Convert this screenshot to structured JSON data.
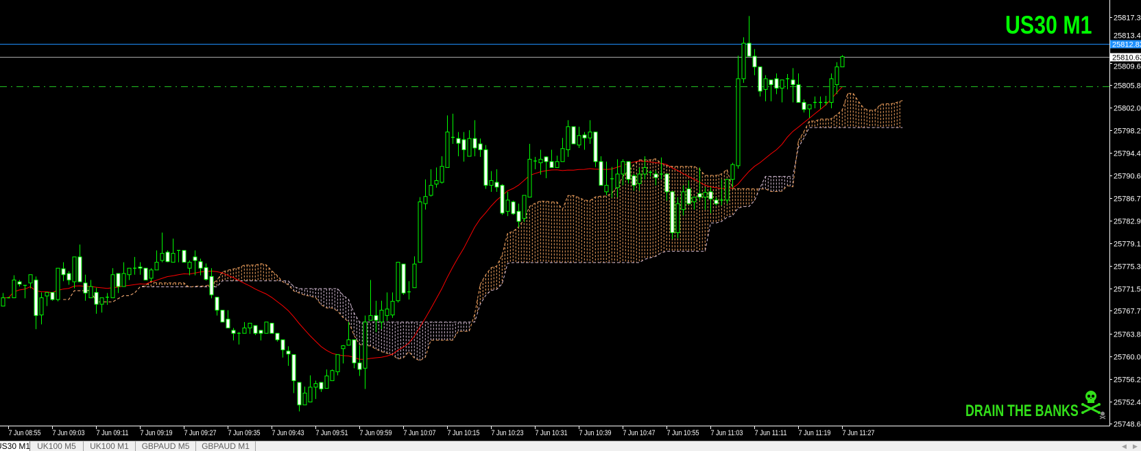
{
  "header": {
    "symbol_title": "US30 M1"
  },
  "watermark": {
    "text": "DRAIN THE BANKS",
    "icon": "skull-crossbones-icon"
  },
  "tabs": [
    {
      "label": "US30 M1",
      "active": true
    },
    {
      "label": "UK100 M5",
      "active": false
    },
    {
      "label": "UK100 M1",
      "active": false
    },
    {
      "label": "GBPAUD M5",
      "active": false
    },
    {
      "label": "GBPAUD M1",
      "active": false
    }
  ],
  "tab_scroll": {
    "left": "◀",
    "right": "▶"
  },
  "colors": {
    "background": "#000000",
    "candle_outline": "#00ff00",
    "bear_body": "#ffffff",
    "bull_body": "#000000",
    "moving_average": "#ff0000",
    "cloud_span_a": "#f4a460",
    "cloud_span_b": "#d8bfd8",
    "axis": "#ffffff",
    "title": "#00ff00"
  },
  "chart_data": {
    "type": "candlestick",
    "title": "US30 M1",
    "ylim": [
      25748.3,
      25820.2
    ],
    "grid": false,
    "first_bar_time": "7 Jun 08:54",
    "x_tick_labels": [
      "7 Jun 08:55",
      "7 Jun 09:03",
      "7 Jun 09:11",
      "7 Jun 09:19",
      "7 Jun 09:27",
      "7 Jun 09:35",
      "7 Jun 09:43",
      "7 Jun 09:51",
      "7 Jun 09:59",
      "7 Jun 10:07",
      "7 Jun 10:15",
      "7 Jun 10:23",
      "7 Jun 10:31",
      "7 Jun 10:39",
      "7 Jun 10:47",
      "7 Jun 10:55",
      "7 Jun 11:03",
      "7 Jun 11:11",
      "7 Jun 11:19",
      "7 Jun 11:27"
    ],
    "y_tick_labels": [
      "25817.30",
      "25813.40",
      "25809.60",
      "25805.80",
      "25802.00",
      "25798.20",
      "25794.40",
      "25790.60",
      "25786.70",
      "25782.90",
      "25779.10",
      "25775.30",
      "25771.50",
      "25767.70",
      "25763.80",
      "25760.00",
      "25756.20",
      "25752.40",
      "25748.60"
    ],
    "horizontal_lines": [
      {
        "price": 25812.83,
        "label": "25812.83",
        "color": "#1e90ff",
        "style": "solid",
        "label_bg": "#1e90ff",
        "label_color": "#ffffff"
      },
      {
        "price": 25810.63,
        "label": "25810.63",
        "color": "#a9a9a9",
        "style": "solid",
        "label_bg": "#ffffff",
        "label_color": "#000000"
      },
      {
        "price": 25805.6,
        "color": "#22c322",
        "style": "dash-dot"
      }
    ],
    "ohlc_columns": [
      "open",
      "high",
      "low",
      "close"
    ],
    "ohlc": [
      [
        25768.5,
        25770.7,
        25768.5,
        25769.9
      ],
      [
        25769.9,
        25770.0,
        25769.8,
        25769.9
      ],
      [
        25769.9,
        25773.7,
        25769.9,
        25772.9
      ],
      [
        25772.6,
        25772.9,
        25771.8,
        25772.2
      ],
      [
        25772.0,
        25772.0,
        25769.8,
        25771.9
      ],
      [
        25772.4,
        25773.8,
        25771.5,
        25773.8
      ],
      [
        25772.9,
        25773.5,
        25764.6,
        25766.9
      ],
      [
        25767.0,
        25770.8,
        25765.4,
        25769.9
      ],
      [
        25770.2,
        25770.8,
        25768.5,
        25770.8
      ],
      [
        25770.8,
        25770.8,
        25769.4,
        25769.6
      ],
      [
        25769.6,
        25774.9,
        25769.3,
        25774.9
      ],
      [
        25774.8,
        25775.9,
        25772.7,
        25773.8
      ],
      [
        25774.0,
        25774.4,
        25772.1,
        25772.9
      ],
      [
        25772.6,
        25776.8,
        25771.5,
        25776.8
      ],
      [
        25776.8,
        25778.9,
        25772.6,
        25772.6
      ],
      [
        25772.4,
        25773.8,
        25769.4,
        25770.7
      ],
      [
        25769.9,
        25772.9,
        25769.9,
        25771.8
      ],
      [
        25770.8,
        25771.6,
        25767.2,
        25768.8
      ],
      [
        25768.8,
        25769.9,
        25767.4,
        25769.9
      ],
      [
        25770.0,
        25770.7,
        25768.7,
        25769.9
      ],
      [
        25769.9,
        25774.9,
        25769.9,
        25773.8
      ],
      [
        25774.0,
        25774.0,
        25770.7,
        25771.8
      ],
      [
        25771.8,
        25775.9,
        25771.8,
        25774.0
      ],
      [
        25773.8,
        25774.9,
        25772.9,
        25774.9
      ],
      [
        25774.9,
        25776.8,
        25773.8,
        25774.9
      ],
      [
        25775.1,
        25775.9,
        25773.8,
        25774.9
      ],
      [
        25774.9,
        25774.9,
        25772.9,
        25772.9
      ],
      [
        25773.2,
        25774.9,
        25772.7,
        25774.6
      ],
      [
        25774.6,
        25777.9,
        25774.6,
        25775.9
      ],
      [
        25776.2,
        25780.9,
        25775.9,
        25777.4
      ],
      [
        25777.6,
        25777.9,
        25775.9,
        25776.0
      ],
      [
        25775.9,
        25779.9,
        25775.9,
        25777.4
      ],
      [
        25777.9,
        25777.9,
        25775.9,
        25777.9
      ],
      [
        25777.9,
        25777.9,
        25775.9,
        25775.9
      ],
      [
        25774.9,
        25776.2,
        25773.7,
        25775.9
      ],
      [
        25776.8,
        25777.9,
        25773.7,
        25776.2
      ],
      [
        25776.0,
        25776.5,
        25773.7,
        25774.9
      ],
      [
        25775.0,
        25775.7,
        25772.8,
        25773.0
      ],
      [
        25773.5,
        25774.9,
        25769.8,
        25770.4
      ],
      [
        25770.0,
        25770.0,
        25766.9,
        25767.8
      ],
      [
        25767.8,
        25767.8,
        25765.8,
        25765.8
      ],
      [
        25766.3,
        25767.8,
        25764.8,
        25764.8
      ],
      [
        25764.4,
        25764.8,
        25762.7,
        25763.9
      ],
      [
        25763.9,
        25764.1,
        25762.0,
        25763.9
      ],
      [
        25763.9,
        25765.8,
        25763.9,
        25764.8
      ],
      [
        25764.8,
        25765.6,
        25763.8,
        25765.6
      ],
      [
        25765.2,
        25765.2,
        25763.6,
        25763.9
      ],
      [
        25764.4,
        25764.4,
        25762.7,
        25763.9
      ],
      [
        25763.9,
        25765.8,
        25763.9,
        25765.8
      ],
      [
        25765.6,
        25765.6,
        25763.9,
        25763.9
      ],
      [
        25763.9,
        25763.9,
        25762.5,
        25762.8
      ],
      [
        25762.8,
        25762.8,
        25759.8,
        25761.1
      ],
      [
        25760.9,
        25761.7,
        25758.4,
        25760.4
      ],
      [
        25760.3,
        25760.3,
        25753.8,
        25755.9
      ],
      [
        25755.6,
        25755.6,
        25750.7,
        25751.8
      ],
      [
        25751.8,
        25754.9,
        25751.8,
        25753.8
      ],
      [
        25752.3,
        25756.8,
        25752.3,
        25754.8
      ],
      [
        25754.8,
        25755.9,
        25752.8,
        25755.4
      ],
      [
        25755.6,
        25755.6,
        25754.0,
        25754.5
      ],
      [
        25754.6,
        25757.8,
        25754.6,
        25756.7
      ],
      [
        25755.9,
        25757.8,
        25755.9,
        25757.6
      ],
      [
        25757.4,
        25760.3,
        25756.8,
        25760.3
      ],
      [
        25761.3,
        25761.9,
        25758.8,
        25761.8
      ],
      [
        25761.9,
        25765.8,
        25761.9,
        25762.8
      ],
      [
        25762.8,
        25762.8,
        25758.0,
        25758.9
      ],
      [
        25758.9,
        25761.9,
        25756.7,
        25757.8
      ],
      [
        25758.0,
        25766.9,
        25754.5,
        25765.8
      ],
      [
        25766.1,
        25772.9,
        25766.1,
        25766.9
      ],
      [
        25766.9,
        25769.4,
        25764.1,
        25766.1
      ],
      [
        25765.8,
        25769.4,
        25764.6,
        25767.8
      ],
      [
        25766.9,
        25770.8,
        25766.0,
        25768.0
      ],
      [
        25767.0,
        25770.8,
        25766.5,
        25769.3
      ],
      [
        25769.4,
        25775.9,
        25769.1,
        25775.9
      ],
      [
        25775.6,
        25775.6,
        25770.4,
        25770.7
      ],
      [
        25770.9,
        25772.7,
        25769.6,
        25770.8
      ],
      [
        25771.6,
        25776.9,
        25771.6,
        25775.6
      ],
      [
        25775.9,
        25786.9,
        25775.9,
        25786.1
      ],
      [
        25785.8,
        25789.9,
        25784.8,
        25787.0
      ],
      [
        25787.2,
        25791.6,
        25787.0,
        25788.9
      ],
      [
        25789.1,
        25791.9,
        25788.5,
        25789.7
      ],
      [
        25789.4,
        25793.8,
        25789.2,
        25792.1
      ],
      [
        25791.9,
        25800.7,
        25791.9,
        25797.9
      ],
      [
        25797.0,
        25801.0,
        25795.9,
        25797.0
      ],
      [
        25796.8,
        25797.9,
        25793.8,
        25796.0
      ],
      [
        25796.6,
        25797.9,
        25792.9,
        25794.9
      ],
      [
        25793.8,
        25798.2,
        25793.8,
        25796.8
      ],
      [
        25796.8,
        25799.9,
        25793.8,
        25795.2
      ],
      [
        25795.9,
        25796.8,
        25793.7,
        25794.9
      ],
      [
        25794.9,
        25795.7,
        25788.3,
        25788.9
      ],
      [
        25788.9,
        25791.3,
        25787.8,
        25789.7
      ],
      [
        25789.4,
        25791.6,
        25787.8,
        25788.6
      ],
      [
        25788.9,
        25789.1,
        25783.9,
        25784.2
      ],
      [
        25784.5,
        25787.8,
        25783.7,
        25786.4
      ],
      [
        25786.1,
        25786.3,
        25783.9,
        25784.1
      ],
      [
        25784.5,
        25785.8,
        25781.8,
        25782.8
      ],
      [
        25783.3,
        25787.2,
        25782.7,
        25787.2
      ],
      [
        25786.9,
        25795.9,
        25786.9,
        25793.3
      ],
      [
        25793.0,
        25793.7,
        25791.6,
        25793.0
      ],
      [
        25792.7,
        25794.9,
        25790.7,
        25793.3
      ],
      [
        25793.7,
        25793.8,
        25790.1,
        25792.9
      ],
      [
        25792.9,
        25794.9,
        25791.9,
        25791.9
      ],
      [
        25791.9,
        25793.9,
        25791.9,
        25792.9
      ],
      [
        25792.9,
        25796.9,
        25792.9,
        25795.1
      ],
      [
        25794.9,
        25799.9,
        25793.7,
        25798.8
      ],
      [
        25798.8,
        25798.8,
        25795.9,
        25795.9
      ],
      [
        25795.7,
        25798.8,
        25795.2,
        25797.3
      ],
      [
        25797.4,
        25797.9,
        25794.9,
        25796.9
      ],
      [
        25796.9,
        25799.9,
        25795.9,
        25797.9
      ],
      [
        25797.9,
        25797.9,
        25792.0,
        25792.9
      ],
      [
        25792.9,
        25793.8,
        25788.9,
        25788.9
      ],
      [
        25787.8,
        25792.9,
        25787.2,
        25788.9
      ],
      [
        25790.0,
        25792.0,
        25786.8,
        25790.0
      ],
      [
        25788.5,
        25793.3,
        25786.9,
        25790.8
      ],
      [
        25790.8,
        25793.3,
        25788.9,
        25792.9
      ],
      [
        25792.9,
        25792.9,
        25789.2,
        25789.9
      ],
      [
        25790.5,
        25790.8,
        25788.0,
        25788.9
      ],
      [
        25789.2,
        25791.9,
        25788.0,
        25790.8
      ],
      [
        25790.8,
        25793.8,
        25789.9,
        25791.9
      ],
      [
        25791.1,
        25791.4,
        25790.4,
        25791.1
      ],
      [
        25790.8,
        25791.4,
        25788.9,
        25790.2
      ],
      [
        25790.8,
        25793.6,
        25789.9,
        25790.8
      ],
      [
        25790.8,
        25790.8,
        25786.3,
        25787.8
      ],
      [
        25787.8,
        25787.8,
        25779.8,
        25780.9
      ],
      [
        25780.9,
        25786.9,
        25780.0,
        25785.8
      ],
      [
        25784.8,
        25788.9,
        25783.8,
        25787.8
      ],
      [
        25788.3,
        25789.7,
        25785.6,
        25785.8
      ],
      [
        25786.1,
        25787.0,
        25784.8,
        25786.9
      ],
      [
        25787.5,
        25791.9,
        25786.3,
        25786.9
      ],
      [
        25786.9,
        25788.5,
        25784.8,
        25787.7
      ],
      [
        25787.8,
        25788.6,
        25784.2,
        25786.6
      ],
      [
        25786.4,
        25786.9,
        25785.5,
        25785.8
      ],
      [
        25786.4,
        25789.9,
        25785.5,
        25786.4
      ],
      [
        25786.4,
        25789.9,
        25785.8,
        25789.9
      ],
      [
        25789.9,
        25792.7,
        25788.5,
        25792.4
      ],
      [
        25792.2,
        25810.8,
        25791.7,
        25806.9
      ],
      [
        25806.9,
        25813.9,
        25806.2,
        25812.9
      ],
      [
        25812.9,
        25817.5,
        25810.7,
        25810.7
      ],
      [
        25810.7,
        25811.9,
        25807.5,
        25808.9
      ],
      [
        25808.9,
        25808.9,
        25803.9,
        25804.8
      ],
      [
        25805.1,
        25807.5,
        25803.1,
        25806.9
      ],
      [
        25806.7,
        25806.7,
        25803.1,
        25805.9
      ],
      [
        25806.9,
        25807.8,
        25804.3,
        25805.3
      ],
      [
        25805.3,
        25806.7,
        25802.9,
        25806.7
      ],
      [
        25806.9,
        25807.7,
        25805.1,
        25806.9
      ],
      [
        25806.7,
        25808.7,
        25802.9,
        25805.9
      ],
      [
        25805.9,
        25807.8,
        25802.9,
        25802.9
      ],
      [
        25802.9,
        25803.4,
        25801.2,
        25801.7
      ],
      [
        25801.8,
        25802.5,
        25800.3,
        25802.5
      ],
      [
        25802.9,
        25803.9,
        25801.9,
        25802.9
      ],
      [
        25802.9,
        25803.9,
        25801.8,
        25802.9
      ],
      [
        25802.9,
        25804.0,
        25802.4,
        25802.9
      ],
      [
        25802.9,
        25807.8,
        25801.9,
        25806.9
      ],
      [
        25805.9,
        25809.7,
        25804.3,
        25808.9
      ],
      [
        25808.9,
        25810.9,
        25808.9,
        25810.63
      ]
    ]
  }
}
